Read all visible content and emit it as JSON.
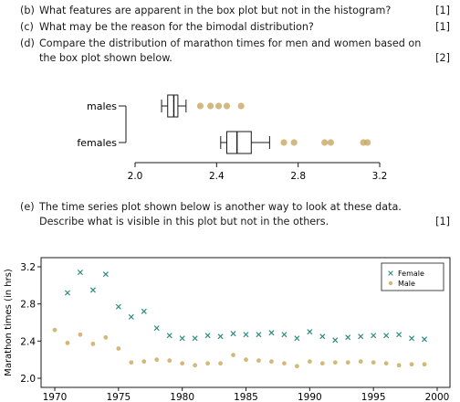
{
  "questions": [
    {
      "letter": "(b)",
      "text": "What features are apparent in the box plot but not in the histogram?",
      "marks": "[1]"
    },
    {
      "letter": "(c)",
      "text": "What may be the reason for the bimodal distribution?",
      "marks": "[1]"
    },
    {
      "letter": "(d)",
      "text": "Compare the distribution of marathon times for men and women based on the box plot shown below.",
      "marks": "[2]"
    },
    {
      "letter": "(e)",
      "text": "The time series plot shown below is another way to look at these data. Describe what is visible in this plot but not in the others.",
      "marks": "[1]"
    }
  ],
  "colors": {
    "male": "#d4b878",
    "female": "#2e8b7d",
    "male_box": "#c8a860"
  },
  "chart_data": [
    {
      "type": "box",
      "categories": [
        "males",
        "females"
      ],
      "xlim": [
        2.0,
        3.2
      ],
      "xticks": [
        "2.0",
        "2.4",
        "2.8",
        "3.2"
      ],
      "series": [
        {
          "name": "males",
          "min": 2.13,
          "q1": 2.16,
          "median": 2.19,
          "q3": 2.21,
          "max": 2.25,
          "outliers": [
            2.32,
            2.37,
            2.41,
            2.45,
            2.52
          ]
        },
        {
          "name": "females",
          "min": 2.42,
          "q1": 2.45,
          "median": 2.5,
          "q3": 2.57,
          "max": 2.66,
          "outliers": [
            2.73,
            2.78,
            2.93,
            2.96,
            3.12,
            3.14
          ]
        }
      ]
    },
    {
      "type": "scatter",
      "xlabel": "",
      "ylabel": "Marathon times (in hrs)",
      "xlim": [
        1968,
        2000
      ],
      "ylim": [
        2.0,
        3.2
      ],
      "xticks": [
        "1970",
        "1975",
        "1980",
        "1985",
        "1990",
        "1995",
        "2000"
      ],
      "yticks": [
        "2.0",
        "2.4",
        "2.8",
        "3.2"
      ],
      "legend": "top-right",
      "series": [
        {
          "name": "Female",
          "marker": "x",
          "x": [
            1971,
            1972,
            1973,
            1974,
            1975,
            1976,
            1977,
            1978,
            1979,
            1980,
            1981,
            1982,
            1983,
            1984,
            1985,
            1986,
            1987,
            1988,
            1989,
            1990,
            1991,
            1992,
            1993,
            1994,
            1995,
            1996,
            1997,
            1998,
            1999
          ],
          "y": [
            2.92,
            3.14,
            2.95,
            3.12,
            2.77,
            2.66,
            2.72,
            2.54,
            2.46,
            2.43,
            2.43,
            2.46,
            2.45,
            2.48,
            2.47,
            2.47,
            2.49,
            2.47,
            2.43,
            2.5,
            2.45,
            2.41,
            2.44,
            2.45,
            2.46,
            2.46,
            2.47,
            2.43,
            2.42
          ]
        },
        {
          "name": "Male",
          "marker": "dot",
          "x": [
            1970,
            1971,
            1972,
            1973,
            1974,
            1975,
            1976,
            1977,
            1978,
            1979,
            1980,
            1981,
            1982,
            1983,
            1984,
            1985,
            1986,
            1987,
            1988,
            1989,
            1990,
            1991,
            1992,
            1993,
            1994,
            1995,
            1996,
            1997,
            1998,
            1999
          ],
          "y": [
            2.52,
            2.38,
            2.47,
            2.37,
            2.44,
            2.32,
            2.17,
            2.18,
            2.2,
            2.19,
            2.16,
            2.14,
            2.16,
            2.16,
            2.25,
            2.2,
            2.19,
            2.18,
            2.16,
            2.13,
            2.18,
            2.16,
            2.17,
            2.17,
            2.18,
            2.17,
            2.16,
            2.14,
            2.15,
            2.15
          ]
        }
      ]
    }
  ]
}
